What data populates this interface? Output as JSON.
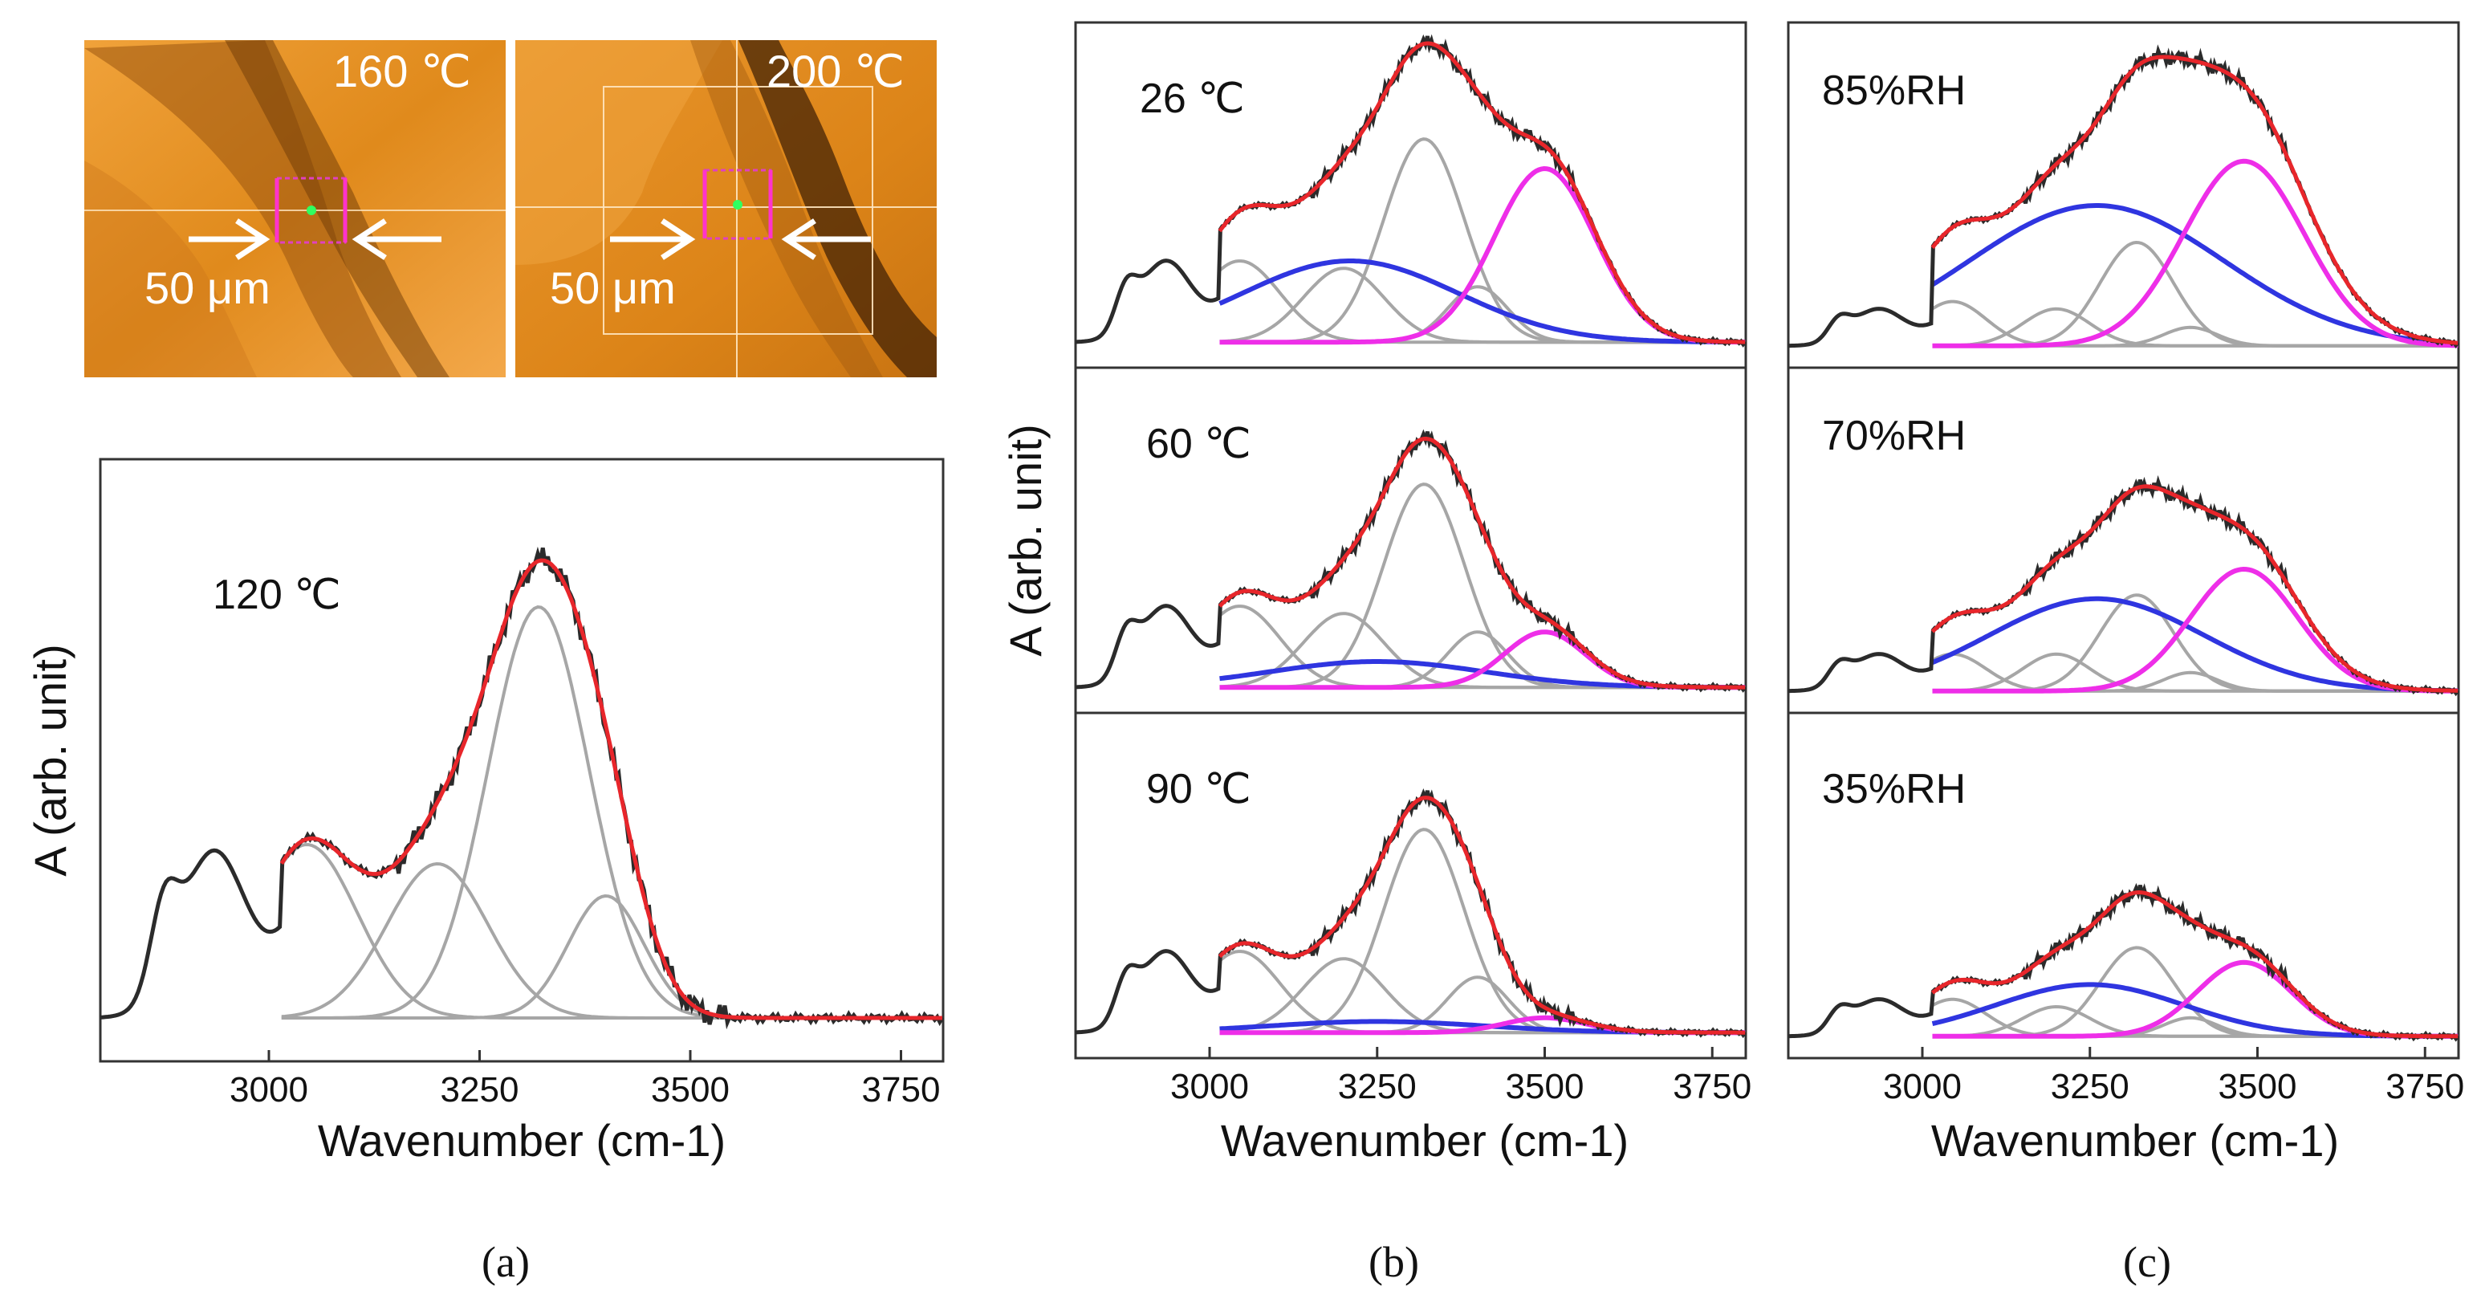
{
  "figure": {
    "captions": [
      "(a)",
      "(b)",
      "(c)"
    ],
    "micrographs": [
      {
        "temperature_label": "160 ℃",
        "scale_label": "50 μm"
      },
      {
        "temperature_label": "200 ℃",
        "scale_label": "50 μm"
      }
    ]
  },
  "colors": {
    "measured": "#2b2b2b",
    "fit": "#e8262b",
    "gaussian": "#a6a6a6",
    "blue": "#2f35e0",
    "magenta": "#ee2ee8",
    "photo_base": "#e08a1c",
    "photo_dark": "#8a4a0a"
  },
  "chart_data": [
    {
      "id": "a",
      "type": "line",
      "title": "",
      "panel_label": "120 ℃",
      "xlabel": "Wavenumber (cm-1)",
      "ylabel": "A (arb. unit)",
      "xlim": [
        2800,
        3800
      ],
      "xticks": [
        3000,
        3250,
        3500,
        3750
      ],
      "x_tick_labels": [
        "3000",
        "3250",
        "3500",
        "3750"
      ],
      "baseline": 0.04,
      "gaussians": [
        {
          "center": 3045,
          "height": 0.27,
          "width": 60,
          "color": "gray"
        },
        {
          "center": 3200,
          "height": 0.24,
          "width": 60,
          "color": "gray"
        },
        {
          "center": 3320,
          "height": 0.64,
          "width": 60,
          "color": "gray"
        },
        {
          "center": 3400,
          "height": 0.19,
          "width": 45,
          "color": "gray"
        }
      ],
      "low_wavenumber_bands": [
        {
          "center": 2875,
          "height": 0.12,
          "width": 16
        },
        {
          "center": 2935,
          "height": 0.26,
          "width": 40
        },
        {
          "center": 3050,
          "height": 0.18,
          "width": 35
        }
      ]
    },
    {
      "id": "b",
      "type": "line",
      "xlabel": "Wavenumber (cm-1)",
      "ylabel": "A (arb. unit)",
      "xlim": [
        2800,
        3800
      ],
      "xticks": [
        3000,
        3250,
        3500,
        3750
      ],
      "x_tick_labels": [
        "3000",
        "3250",
        "3500",
        "3750"
      ],
      "subplots": [
        {
          "panel_label": "26 ℃",
          "baseline": 0.03,
          "gaussians": [
            {
              "center": 3045,
              "height": 0.22,
              "width": 60,
              "color": "gray"
            },
            {
              "center": 3200,
              "height": 0.2,
              "width": 60,
              "color": "gray"
            },
            {
              "center": 3320,
              "height": 0.55,
              "width": 60,
              "color": "gray"
            },
            {
              "center": 3400,
              "height": 0.15,
              "width": 45,
              "color": "gray"
            },
            {
              "center": 3210,
              "height": 0.22,
              "width": 160,
              "color": "blue"
            },
            {
              "center": 3500,
              "height": 0.47,
              "width": 75,
              "color": "magenta"
            }
          ]
        },
        {
          "panel_label": "60 ℃",
          "baseline": 0.03,
          "gaussians": [
            {
              "center": 3045,
              "height": 0.22,
              "width": 60,
              "color": "gray"
            },
            {
              "center": 3200,
              "height": 0.2,
              "width": 60,
              "color": "gray"
            },
            {
              "center": 3320,
              "height": 0.55,
              "width": 60,
              "color": "gray"
            },
            {
              "center": 3400,
              "height": 0.15,
              "width": 45,
              "color": "gray"
            },
            {
              "center": 3250,
              "height": 0.07,
              "width": 160,
              "color": "blue"
            },
            {
              "center": 3500,
              "height": 0.15,
              "width": 60,
              "color": "magenta"
            }
          ]
        },
        {
          "panel_label": "90 ℃",
          "baseline": 0.03,
          "gaussians": [
            {
              "center": 3045,
              "height": 0.22,
              "width": 60,
              "color": "gray"
            },
            {
              "center": 3200,
              "height": 0.2,
              "width": 60,
              "color": "gray"
            },
            {
              "center": 3320,
              "height": 0.55,
              "width": 60,
              "color": "gray"
            },
            {
              "center": 3400,
              "height": 0.15,
              "width": 45,
              "color": "gray"
            },
            {
              "center": 3250,
              "height": 0.03,
              "width": 160,
              "color": "blue"
            },
            {
              "center": 3500,
              "height": 0.04,
              "width": 60,
              "color": "magenta"
            }
          ]
        }
      ]
    },
    {
      "id": "c",
      "type": "line",
      "xlabel": "Wavenumber (cm-1)",
      "ylabel": "",
      "xlim": [
        2800,
        3800
      ],
      "xticks": [
        3000,
        3250,
        3500,
        3750
      ],
      "x_tick_labels": [
        "3000",
        "3250",
        "3500",
        "3750"
      ],
      "subplots": [
        {
          "panel_label": "85%RH",
          "baseline": 0.02,
          "gaussians": [
            {
              "center": 3045,
              "height": 0.12,
              "width": 50,
              "color": "gray"
            },
            {
              "center": 3200,
              "height": 0.1,
              "width": 50,
              "color": "gray"
            },
            {
              "center": 3320,
              "height": 0.28,
              "width": 55,
              "color": "gray"
            },
            {
              "center": 3400,
              "height": 0.05,
              "width": 40,
              "color": "gray"
            },
            {
              "center": 3260,
              "height": 0.38,
              "width": 190,
              "color": "blue"
            },
            {
              "center": 3480,
              "height": 0.5,
              "width": 90,
              "color": "magenta"
            }
          ]
        },
        {
          "panel_label": "70%RH",
          "baseline": 0.02,
          "gaussians": [
            {
              "center": 3045,
              "height": 0.1,
              "width": 50,
              "color": "gray"
            },
            {
              "center": 3200,
              "height": 0.1,
              "width": 50,
              "color": "gray"
            },
            {
              "center": 3320,
              "height": 0.26,
              "width": 55,
              "color": "gray"
            },
            {
              "center": 3400,
              "height": 0.05,
              "width": 40,
              "color": "gray"
            },
            {
              "center": 3260,
              "height": 0.25,
              "width": 160,
              "color": "blue"
            },
            {
              "center": 3480,
              "height": 0.33,
              "width": 80,
              "color": "magenta"
            }
          ]
        },
        {
          "panel_label": "35%RH",
          "baseline": 0.02,
          "gaussians": [
            {
              "center": 3045,
              "height": 0.1,
              "width": 50,
              "color": "gray"
            },
            {
              "center": 3200,
              "height": 0.08,
              "width": 50,
              "color": "gray"
            },
            {
              "center": 3320,
              "height": 0.24,
              "width": 55,
              "color": "gray"
            },
            {
              "center": 3400,
              "height": 0.05,
              "width": 40,
              "color": "gray"
            },
            {
              "center": 3250,
              "height": 0.14,
              "width": 140,
              "color": "blue"
            },
            {
              "center": 3480,
              "height": 0.2,
              "width": 70,
              "color": "magenta"
            }
          ]
        }
      ]
    }
  ]
}
